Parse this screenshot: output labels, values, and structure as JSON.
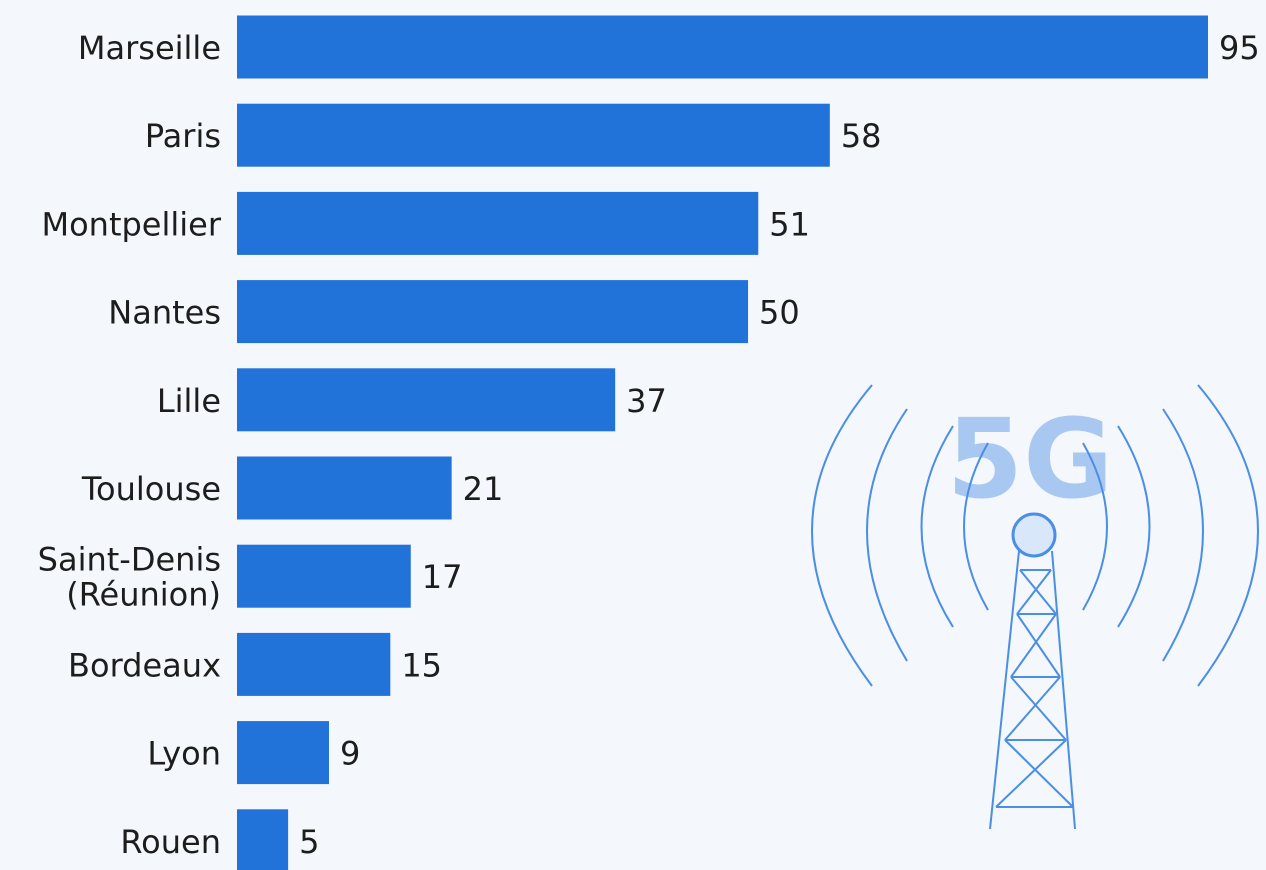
{
  "chart_data": {
    "type": "bar",
    "orientation": "horizontal",
    "categories": [
      [
        "Marseille"
      ],
      [
        "Paris"
      ],
      [
        "Montpellier"
      ],
      [
        "Nantes"
      ],
      [
        "Lille"
      ],
      [
        "Toulouse"
      ],
      [
        "Saint-Denis",
        "(Réunion)"
      ],
      [
        "Bordeaux"
      ],
      [
        "Lyon"
      ],
      [
        "Rouen"
      ]
    ],
    "values": [
      95,
      58,
      51,
      50,
      37,
      21,
      17,
      15,
      9,
      5
    ],
    "data_labels": [
      "95",
      "58",
      "51",
      "50",
      "37",
      "21",
      "17",
      "15",
      "9",
      "5"
    ],
    "xlim": [
      0,
      95
    ],
    "grid": false,
    "legend": "none",
    "title": "",
    "xlabel": "",
    "ylabel": ""
  },
  "illustration": {
    "icon": "5g-antenna-tower-icon",
    "text": "5G"
  },
  "colors": {
    "bar": "#2173d9",
    "label": "#1d1d1d",
    "background": "#f4f7fb",
    "illustration_stroke": "#4a8ee6",
    "illustration_text": "#a9c8f1",
    "illustration_bulb": "#d8e7fa"
  }
}
